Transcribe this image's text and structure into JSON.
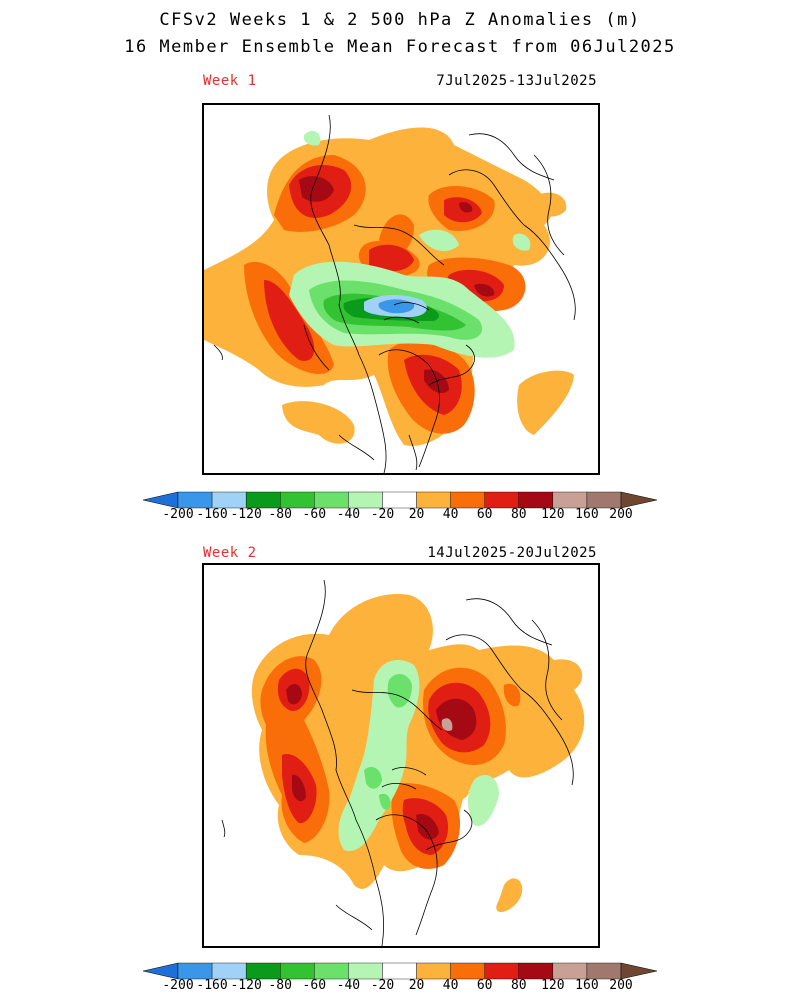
{
  "title": {
    "line1": "CFSv2 Weeks 1 & 2 500 hPa Z Anomalies (m)",
    "line2": "16 Member Ensemble Mean Forecast from 06Jul2025"
  },
  "panels": [
    {
      "label": "Week 1",
      "dates": "7Jul2025-13Jul2025"
    },
    {
      "label": "Week 2",
      "dates": "14Jul2025-20Jul2025"
    }
  ],
  "colorbar": {
    "colors": [
      "#1e6fd8",
      "#3a96e8",
      "#a0d2f8",
      "#0a9a1c",
      "#32c232",
      "#6be06b",
      "#b4f5b4",
      "#ffffff",
      "#fdb23c",
      "#fa6e0a",
      "#e11e14",
      "#a50a14",
      "#c8a096",
      "#a0786e",
      "#6e4632"
    ],
    "ticks": [
      "-200",
      "-160",
      "-120",
      "-80",
      "-60",
      "-40",
      "-20",
      "20",
      "40",
      "60",
      "80",
      "120",
      "160",
      "200"
    ]
  }
}
